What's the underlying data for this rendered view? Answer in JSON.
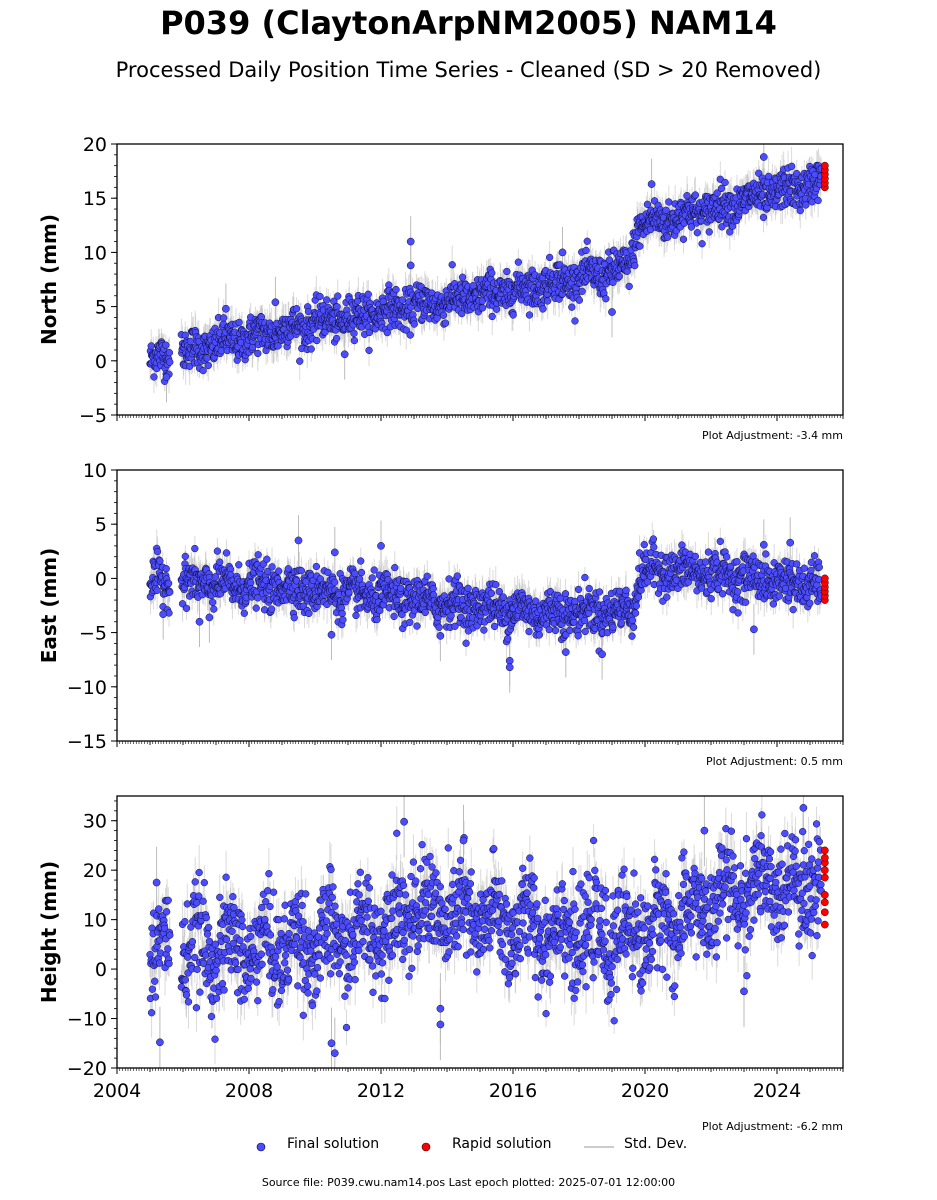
{
  "title": "P039 (ClaytonArpNM2005) NAM14",
  "subtitle": "Processed Daily Position Time Series - Cleaned (SD > 20 Removed)",
  "footer": "Source file: P039.cwu.nam14.pos  Last epoch plotted: 2025-07-01 12:00:00",
  "legend": {
    "final": "Final solution",
    "rapid": "Rapid solution",
    "std": "Std. Dev.",
    "final_color": "#4c4cff",
    "rapid_color": "#ff0000",
    "std_color": "#bbbbbb"
  },
  "chart_data": [
    {
      "type": "scatter",
      "name": "north",
      "ylabel": "North (mm)",
      "ylim": [
        -5,
        20
      ],
      "yticks": [
        -5,
        0,
        5,
        10,
        15,
        20
      ],
      "ytick_labels": [
        "−5",
        "0",
        "5",
        "10",
        "15",
        "20"
      ],
      "xlim": [
        2004,
        2026
      ],
      "adjustment": "Plot Adjustment: -3.4 mm",
      "trend": [
        {
          "x": 2005.0,
          "y": 0.0
        },
        {
          "x": 2007.0,
          "y": 1.5
        },
        {
          "x": 2010.0,
          "y": 3.5
        },
        {
          "x": 2013.0,
          "y": 5.0
        },
        {
          "x": 2016.0,
          "y": 6.5
        },
        {
          "x": 2019.5,
          "y": 8.5
        },
        {
          "x": 2019.8,
          "y": 12.5
        },
        {
          "x": 2022.0,
          "y": 14.0
        },
        {
          "x": 2025.4,
          "y": 16.5
        }
      ],
      "scatter_sd": 0.9,
      "outliers": [
        {
          "x": 2012.9,
          "y": 11.0
        },
        {
          "x": 2012.9,
          "y": 8.8
        },
        {
          "x": 2017.5,
          "y": 10.0
        },
        {
          "x": 2023.6,
          "y": 18.8
        },
        {
          "x": 2020.2,
          "y": 16.3
        },
        {
          "x": 2008.8,
          "y": 5.4
        },
        {
          "x": 2007.3,
          "y": 4.8
        },
        {
          "x": 2005.5,
          "y": -1.5
        },
        {
          "x": 2010.9,
          "y": 0.6
        },
        {
          "x": 2019.0,
          "y": 4.5
        }
      ],
      "rapid": [
        {
          "x": 2025.45,
          "y": 16.0
        },
        {
          "x": 2025.45,
          "y": 16.4
        },
        {
          "x": 2025.45,
          "y": 16.8
        },
        {
          "x": 2025.45,
          "y": 17.2
        },
        {
          "x": 2025.45,
          "y": 17.6
        },
        {
          "x": 2025.45,
          "y": 18.0
        }
      ]
    },
    {
      "type": "scatter",
      "name": "east",
      "ylabel": "East (mm)",
      "ylim": [
        -15,
        10
      ],
      "yticks": [
        -15,
        -10,
        -5,
        0,
        5,
        10
      ],
      "ytick_labels": [
        "−15",
        "−10",
        "−5",
        "0",
        "5",
        "10"
      ],
      "xlim": [
        2004,
        2026
      ],
      "adjustment": "Plot Adjustment: 0.5 mm",
      "trend": [
        {
          "x": 2005.0,
          "y": -0.3
        },
        {
          "x": 2009.0,
          "y": -0.8
        },
        {
          "x": 2013.0,
          "y": -2.0
        },
        {
          "x": 2017.0,
          "y": -3.2
        },
        {
          "x": 2019.6,
          "y": -3.0
        },
        {
          "x": 2019.9,
          "y": 0.8
        },
        {
          "x": 2022.0,
          "y": 0.5
        },
        {
          "x": 2025.4,
          "y": -0.8
        }
      ],
      "scatter_sd": 1.0,
      "outliers": [
        {
          "x": 2009.5,
          "y": 3.5
        },
        {
          "x": 2012.0,
          "y": 3.0
        },
        {
          "x": 2010.6,
          "y": 2.4
        },
        {
          "x": 2010.5,
          "y": -5.2
        },
        {
          "x": 2015.9,
          "y": -7.6
        },
        {
          "x": 2015.9,
          "y": -8.2
        },
        {
          "x": 2018.7,
          "y": -7.0
        },
        {
          "x": 2017.6,
          "y": -6.8
        },
        {
          "x": 2023.3,
          "y": -4.7
        },
        {
          "x": 2024.4,
          "y": 3.3
        },
        {
          "x": 2023.6,
          "y": 3.1
        },
        {
          "x": 2005.4,
          "y": -3.3
        },
        {
          "x": 2006.5,
          "y": -4.0
        },
        {
          "x": 2006.8,
          "y": -3.6
        },
        {
          "x": 2013.8,
          "y": -5.3
        }
      ],
      "rapid": [
        {
          "x": 2025.45,
          "y": -2.0
        },
        {
          "x": 2025.45,
          "y": -1.6
        },
        {
          "x": 2025.45,
          "y": -1.2
        },
        {
          "x": 2025.45,
          "y": -0.8
        },
        {
          "x": 2025.45,
          "y": -0.4
        },
        {
          "x": 2025.45,
          "y": 0.0
        }
      ]
    },
    {
      "type": "scatter",
      "name": "height",
      "ylabel": "Height (mm)",
      "ylim": [
        -20,
        35
      ],
      "yticks": [
        -20,
        -10,
        0,
        10,
        20,
        30
      ],
      "ytick_labels": [
        "−20",
        "−10",
        "0",
        "10",
        "20",
        "30"
      ],
      "xlim": [
        2004,
        2026
      ],
      "xticks": [
        2004,
        2008,
        2012,
        2016,
        2020,
        2024
      ],
      "xtick_labels": [
        "2004",
        "2008",
        "2012",
        "2016",
        "2020",
        "2024"
      ],
      "adjustment": "Plot Adjustment: -6.2 mm",
      "trend": [
        {
          "x": 2005.0,
          "y": 4.0
        },
        {
          "x": 2008.0,
          "y": 4.0
        },
        {
          "x": 2011.0,
          "y": 6.0
        },
        {
          "x": 2013.0,
          "y": 12.0
        },
        {
          "x": 2016.0,
          "y": 9.0
        },
        {
          "x": 2019.0,
          "y": 6.0
        },
        {
          "x": 2021.0,
          "y": 10.0
        },
        {
          "x": 2023.0,
          "y": 16.0
        },
        {
          "x": 2025.4,
          "y": 18.0
        }
      ],
      "scatter_sd": 5.0,
      "outliers": [
        {
          "x": 2012.7,
          "y": 29.8
        },
        {
          "x": 2010.5,
          "y": -15.0
        },
        {
          "x": 2010.6,
          "y": -17.0
        },
        {
          "x": 2005.3,
          "y": -14.8
        },
        {
          "x": 2013.8,
          "y": -11.2
        },
        {
          "x": 2013.8,
          "y": -8.0
        },
        {
          "x": 2021.8,
          "y": 28.0
        },
        {
          "x": 2024.8,
          "y": 32.6
        },
        {
          "x": 2023.0,
          "y": -4.5
        },
        {
          "x": 2014.5,
          "y": 26.0
        },
        {
          "x": 2005.2,
          "y": 17.5
        }
      ],
      "rapid": [
        {
          "x": 2025.45,
          "y": 9.0
        },
        {
          "x": 2025.45,
          "y": 11.5
        },
        {
          "x": 2025.45,
          "y": 13.5
        },
        {
          "x": 2025.45,
          "y": 15.0
        },
        {
          "x": 2025.45,
          "y": 18.5
        },
        {
          "x": 2025.45,
          "y": 20.0
        },
        {
          "x": 2025.45,
          "y": 21.5
        },
        {
          "x": 2025.45,
          "y": 22.5
        },
        {
          "x": 2025.45,
          "y": 24.0
        }
      ]
    }
  ]
}
